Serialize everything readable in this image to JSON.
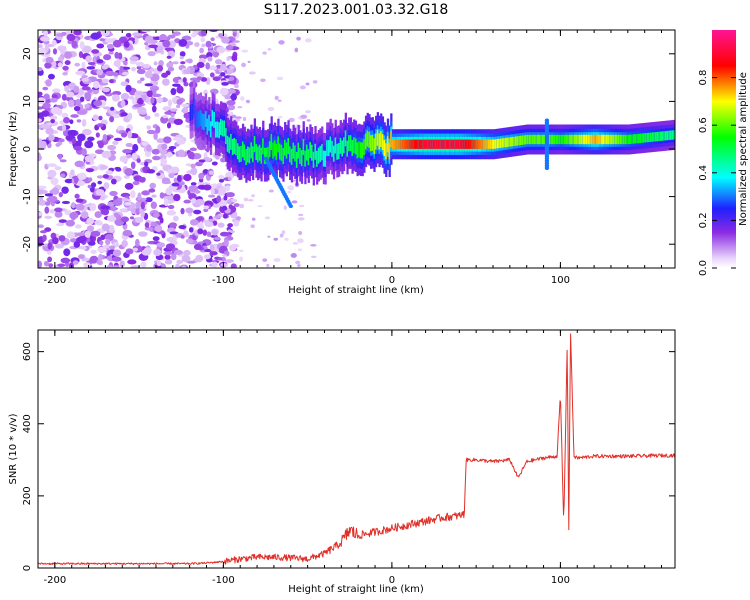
{
  "title": "S117.2023.001.03.32.G18",
  "colors": {
    "snr_line": "#e0302a",
    "frame": "#000000",
    "background": "#ffffff"
  },
  "chart_data": [
    {
      "type": "heatmap",
      "name": "spectrogram",
      "xlabel": "Height of straight line (km)",
      "ylabel": "Frequency (Hz)",
      "xlim": [
        -210,
        168
      ],
      "ylim": [
        -25,
        25
      ],
      "xticks": [
        -200,
        -100,
        0,
        100
      ],
      "xtick_labels": [
        "-200",
        "-100",
        "0",
        "100"
      ],
      "yticks": [
        -20,
        -10,
        0,
        10,
        20
      ],
      "ytick_labels": [
        "-20",
        "-10",
        "0",
        "10",
        "20"
      ],
      "colorbar": {
        "label": "Normalized spectral amplitude",
        "range": [
          0,
          1
        ],
        "ticks": [
          0.0,
          0.2,
          0.4,
          0.6,
          0.8
        ],
        "tick_labels": [
          "0.0",
          "0.2",
          "0.4",
          "0.6",
          "0.8"
        ],
        "colormap": "rainbow (white-violet-blue-cyan-green-yellow-red-pink)"
      },
      "features": {
        "noise_region_x": [
          -210,
          -100
        ],
        "main_ridge": {
          "x": [
            -120,
            -110,
            -100,
            -90,
            -80,
            -70,
            -60,
            -50,
            -40,
            -30,
            -20,
            -10,
            0,
            20,
            40,
            60,
            80,
            92,
            100,
            120,
            140,
            168
          ],
          "frequency": [
            8,
            6,
            3,
            -1,
            0,
            0,
            -1,
            -1,
            -1,
            1,
            1,
            1,
            1,
            1,
            1,
            1,
            2,
            2,
            2,
            2,
            2,
            3
          ],
          "amplitude": [
            0.25,
            0.35,
            0.45,
            0.5,
            0.5,
            0.55,
            0.5,
            0.5,
            0.4,
            0.45,
            0.55,
            0.65,
            0.75,
            0.9,
            0.9,
            0.7,
            0.6,
            0.6,
            0.55,
            0.75,
            0.55,
            0.45
          ]
        }
      }
    },
    {
      "type": "line",
      "name": "snr",
      "xlabel": "Height of straight line (km)",
      "ylabel": "SNR (10 * v/v)",
      "xlim": [
        -210,
        168
      ],
      "ylim": [
        0,
        660
      ],
      "xticks": [
        -200,
        -100,
        0,
        100
      ],
      "xtick_labels": [
        "-200",
        "-100",
        "0",
        "100"
      ],
      "yticks": [
        0,
        200,
        400,
        600
      ],
      "ytick_labels": [
        "0",
        "200",
        "400",
        "600"
      ],
      "series": [
        {
          "x": [
            -210,
            -180,
            -150,
            -120,
            -110,
            -100,
            -90,
            -80,
            -70,
            -60,
            -50,
            -40,
            -30,
            -25,
            -20,
            -10,
            0,
            10,
            20,
            30,
            40,
            43,
            44,
            50,
            60,
            70,
            75,
            80,
            90,
            98,
            100,
            102,
            104,
            105,
            106,
            108,
            110,
            120,
            140,
            160,
            168
          ],
          "y": [
            12,
            12,
            12,
            12,
            14,
            18,
            25,
            30,
            30,
            28,
            25,
            40,
            70,
            105,
            90,
            100,
            110,
            120,
            130,
            140,
            145,
            150,
            300,
            300,
            295,
            300,
            250,
            295,
            305,
            310,
            480,
            120,
            620,
            110,
            660,
            310,
            305,
            310,
            310,
            312,
            312
          ]
        }
      ]
    }
  ]
}
